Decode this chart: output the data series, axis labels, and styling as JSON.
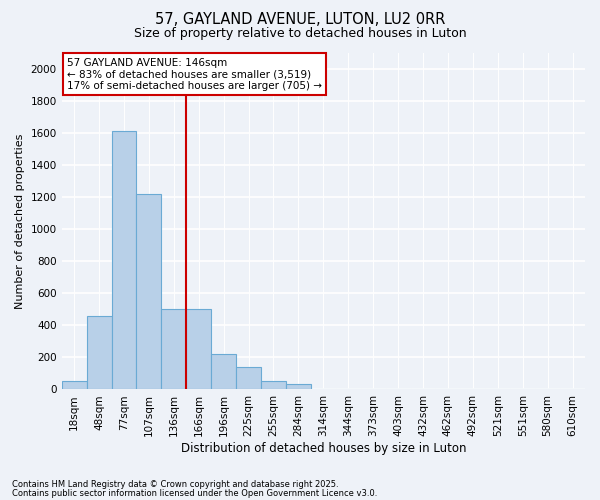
{
  "title1": "57, GAYLAND AVENUE, LUTON, LU2 0RR",
  "title2": "Size of property relative to detached houses in Luton",
  "xlabel": "Distribution of detached houses by size in Luton",
  "ylabel": "Number of detached properties",
  "categories": [
    "18sqm",
    "48sqm",
    "77sqm",
    "107sqm",
    "136sqm",
    "166sqm",
    "196sqm",
    "225sqm",
    "255sqm",
    "284sqm",
    "314sqm",
    "344sqm",
    "373sqm",
    "403sqm",
    "432sqm",
    "462sqm",
    "492sqm",
    "521sqm",
    "551sqm",
    "580sqm",
    "610sqm"
  ],
  "values": [
    50,
    460,
    1610,
    1220,
    500,
    500,
    220,
    140,
    55,
    35,
    0,
    0,
    0,
    0,
    0,
    0,
    0,
    0,
    0,
    0,
    0
  ],
  "bar_color": "#b8d0e8",
  "bar_edge_color": "#6aaad4",
  "vline_x_index": 4.5,
  "vline_color": "#cc0000",
  "annotation_title": "57 GAYLAND AVENUE: 146sqm",
  "annotation_line1": "← 83% of detached houses are smaller (3,519)",
  "annotation_line2": "17% of semi-detached houses are larger (705) →",
  "annotation_box_edgecolor": "#cc0000",
  "footnote1": "Contains HM Land Registry data © Crown copyright and database right 2025.",
  "footnote2": "Contains public sector information licensed under the Open Government Licence v3.0.",
  "bg_color": "#eef2f8",
  "ylim": [
    0,
    2100
  ],
  "yticks": [
    0,
    200,
    400,
    600,
    800,
    1000,
    1200,
    1400,
    1600,
    1800,
    2000
  ],
  "title1_fontsize": 10.5,
  "title2_fontsize": 9,
  "axis_fontsize": 7.5,
  "ylabel_fontsize": 8,
  "xlabel_fontsize": 8.5,
  "footnote_fontsize": 6,
  "annot_fontsize": 7.5
}
